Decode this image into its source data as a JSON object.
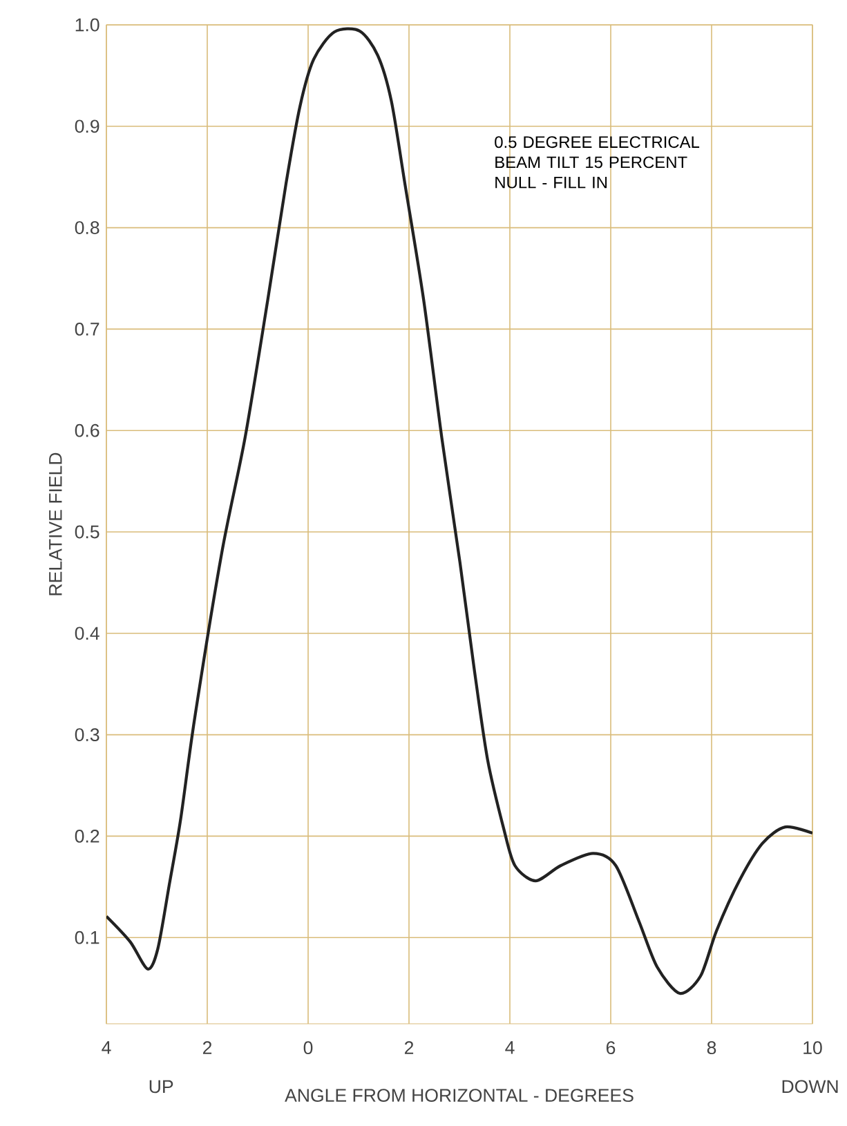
{
  "chart_data": {
    "type": "line",
    "xlabel": "ANGLE FROM HORIZONTAL - DEGREES",
    "ylabel": "RELATIVE FIELD",
    "annotations": [
      "0.5 DEGREE ELECTRICAL BEAM TILT 15 PERCENT NULL - FILL IN",
      "UP",
      "DOWN"
    ],
    "x": [
      -4.0,
      -3.53,
      -3.18,
      -2.98,
      -2.75,
      -2.53,
      -2.25,
      -1.71,
      -1.25,
      -0.8,
      -0.44,
      -0.16,
      0.11,
      0.52,
      1.02,
      1.38,
      1.65,
      1.92,
      2.29,
      2.65,
      3.01,
      3.29,
      3.56,
      3.88,
      4.1,
      4.51,
      5.01,
      5.65,
      6.1,
      6.56,
      6.92,
      7.37,
      7.78,
      8.1,
      8.56,
      9.01,
      9.46,
      10.0
    ],
    "values": [
      0.121,
      0.096,
      0.069,
      0.089,
      0.153,
      0.216,
      0.316,
      0.48,
      0.593,
      0.729,
      0.843,
      0.92,
      0.966,
      0.993,
      0.994,
      0.97,
      0.925,
      0.843,
      0.729,
      0.593,
      0.47,
      0.366,
      0.275,
      0.207,
      0.171,
      0.156,
      0.171,
      0.183,
      0.171,
      0.116,
      0.071,
      0.045,
      0.062,
      0.107,
      0.157,
      0.193,
      0.209,
      0.203
    ],
    "color": "#222222",
    "xlim": [
      -4,
      10
    ],
    "ylim": [
      0.015,
      1.0
    ],
    "xticks": [
      {
        "value": -4,
        "label": "4"
      },
      {
        "value": -2,
        "label": "2"
      },
      0,
      2,
      4,
      6,
      8,
      10
    ],
    "yticks": [
      0.1,
      0.2,
      0.3,
      0.4,
      0.5,
      0.6,
      0.7,
      0.8,
      0.9,
      {
        "value": 1.0,
        "label": "1.0"
      }
    ],
    "grid": true
  }
}
